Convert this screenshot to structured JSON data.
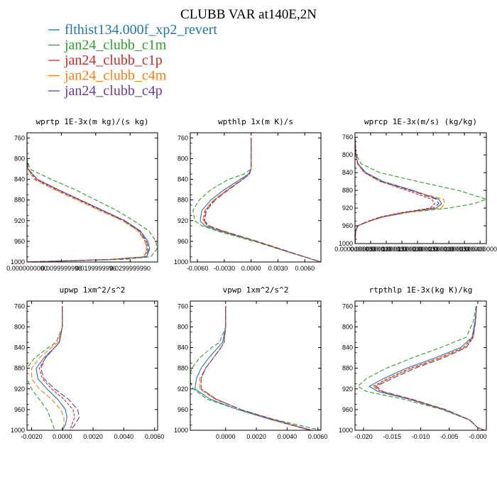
{
  "page": {
    "title": "CLUBB VAR at140E,2N",
    "legend": [
      {
        "label": "flthist134.000f_xp2_revert",
        "color": "#1f77b4",
        "dash": ""
      },
      {
        "label": "jan24_clubb_c1m",
        "color": "#2ca02c",
        "dash": "6,3"
      },
      {
        "label": "jan24_clubb_c1p",
        "color": "#d62728",
        "dash": "4,2"
      },
      {
        "label": "jan24_clubb_c4m",
        "color": "#ff7f0e",
        "dash": "7,3"
      },
      {
        "label": "jan24_clubb_c4p",
        "color": "#6a3d9a",
        "dash": "8,3"
      }
    ]
  },
  "chart_data": [
    {
      "type": "line",
      "title": "wprtp  1E-3x(m kg)/(s kg)",
      "xlim": [
        0.0,
        0.038
      ],
      "ylim": [
        1000,
        750
      ],
      "xticks": [
        0.0,
        0.01,
        0.02,
        0.03
      ],
      "xtick_labels": [
        "0.0000000000",
        "0.0099999998",
        "0.0199999996",
        "0.0299999990"
      ],
      "yticks": [
        760,
        800,
        840,
        880,
        920,
        960,
        1000
      ],
      "ytick_labels": [
        "760",
        "800",
        "840",
        "880",
        "920",
        "960",
        "1000"
      ],
      "y": [
        760,
        800,
        820,
        840,
        860,
        880,
        900,
        920,
        940,
        960,
        975,
        990,
        995,
        1000
      ],
      "series": [
        {
          "values": [
            0,
            0,
            0.0003,
            0.003,
            0.009,
            0.0155,
            0.022,
            0.0285,
            0.033,
            0.0352,
            0.0357,
            0.0348,
            0.025,
            0.0
          ]
        },
        {
          "values": [
            0,
            0,
            0.0008,
            0.007,
            0.014,
            0.02,
            0.026,
            0.031,
            0.0355,
            0.0375,
            0.0378,
            0.036,
            0.028,
            0.0
          ]
        },
        {
          "values": [
            0,
            0,
            0.0002,
            0.0025,
            0.0085,
            0.015,
            0.0215,
            0.028,
            0.0325,
            0.0345,
            0.035,
            0.0342,
            0.024,
            0.0
          ]
        },
        {
          "values": [
            0,
            0,
            0.0002,
            0.002,
            0.008,
            0.0145,
            0.021,
            0.0278,
            0.0323,
            0.0343,
            0.0348,
            0.034,
            0.024,
            0.0
          ]
        },
        {
          "values": [
            0,
            0,
            0.0003,
            0.003,
            0.009,
            0.0155,
            0.022,
            0.0283,
            0.0328,
            0.0348,
            0.0354,
            0.0345,
            0.025,
            0.0
          ]
        }
      ]
    },
    {
      "type": "line",
      "title": "wpthlp  1x(m K)/s",
      "xlim": [
        -0.0068,
        0.0078
      ],
      "ylim": [
        1000,
        750
      ],
      "xticks": [
        -0.006,
        -0.003,
        0.0,
        0.003,
        0.006
      ],
      "xtick_labels": [
        "-0.0060",
        "-0.0030",
        "0.0000",
        "0.0030",
        "0.0060"
      ],
      "yticks": [
        760,
        800,
        840,
        880,
        920,
        960,
        1000
      ],
      "ytick_labels": [
        "760",
        "800",
        "840",
        "880",
        "920",
        "960",
        "1000"
      ],
      "y": [
        760,
        800,
        820,
        830,
        840,
        860,
        880,
        900,
        920,
        930,
        940,
        960,
        980,
        1000
      ],
      "series": [
        {
          "values": [
            0,
            0,
            0,
            -0.0003,
            -0.0012,
            -0.003,
            -0.0045,
            -0.0055,
            -0.0057,
            -0.0052,
            -0.0035,
            0.0005,
            0.004,
            0.0078
          ]
        },
        {
          "values": [
            0,
            0,
            0,
            -0.0008,
            -0.0025,
            -0.0045,
            -0.0058,
            -0.0065,
            -0.0063,
            -0.0055,
            -0.0038,
            0.0003,
            0.004,
            0.0078
          ]
        },
        {
          "values": [
            0,
            0,
            0,
            -0.0002,
            -0.0009,
            -0.0026,
            -0.0041,
            -0.0051,
            -0.0053,
            -0.0048,
            -0.0032,
            0.0006,
            0.0041,
            0.0078
          ]
        },
        {
          "values": [
            0,
            0,
            0,
            -0.0002,
            -0.001,
            -0.0027,
            -0.0042,
            -0.0052,
            -0.0054,
            -0.0049,
            -0.0033,
            0.0006,
            0.0041,
            0.0078
          ]
        },
        {
          "values": [
            0,
            0,
            0,
            -0.0002,
            -0.0009,
            -0.0025,
            -0.004,
            -0.005,
            -0.0052,
            -0.0047,
            -0.0031,
            0.0007,
            0.0042,
            0.0078
          ]
        }
      ]
    },
    {
      "type": "line",
      "title": "wprcp  1E-3x(m/s) (kg/kg)",
      "xlim": [
        0.0,
        0.00042
      ],
      "ylim": [
        1000,
        750
      ],
      "xticks": [
        0.0,
        5e-05,
        0.0001,
        0.00015,
        0.0002,
        0.00025,
        0.0003,
        0.00035,
        0.0004
      ],
      "xtick_labels": [
        "0.0000000000",
        "0.0000500000",
        "0.0001000000",
        "0.0001500000",
        "0.0002000000",
        "0.0002500000",
        "0.0003000000",
        "0.0003500000",
        "0.0004000000"
      ],
      "yticks": [
        760,
        800,
        840,
        880,
        920,
        960,
        1000
      ],
      "ytick_labels": [
        "760",
        "800",
        "840",
        "880",
        "920",
        "960",
        "1000"
      ],
      "y": [
        760,
        800,
        820,
        840,
        860,
        880,
        900,
        910,
        920,
        930,
        940,
        950,
        960,
        970,
        1000
      ],
      "series": [
        {
          "values": [
            0,
            3e-06,
            1e-05,
            3.5e-05,
            9e-05,
            0.000185,
            0.000268,
            0.000277,
            0.00026,
            0.00016,
            9e-05,
            4.5e-05,
            1e-05,
            3e-06,
            0
          ]
        },
        {
          "values": [
            0,
            4e-06,
            2e-05,
            8e-05,
            0.0002,
            0.00033,
            0.00042,
            0.00038,
            0.0003,
            0.00017,
            9e-05,
            4e-05,
            8e-06,
            2e-06,
            0
          ]
        },
        {
          "values": [
            0,
            3e-06,
            8e-06,
            3e-05,
            8e-05,
            0.000165,
            0.000245,
            0.000255,
            0.00024,
            0.00015,
            8e-05,
            4e-05,
            8e-06,
            2e-06,
            0
          ]
        },
        {
          "values": [
            0,
            3e-06,
            9e-06,
            3e-05,
            8e-05,
            0.000175,
            0.000283,
            0.000287,
            0.000275,
            0.00017,
            9e-05,
            4.5e-05,
            1e-05,
            3e-06,
            0
          ]
        },
        {
          "values": [
            0,
            3e-06,
            9e-06,
            3.2e-05,
            8.5e-05,
            0.000178,
            0.00026,
            0.000268,
            0.00025,
            0.000155,
            8.5e-05,
            4.2e-05,
            9e-06,
            2e-06,
            0
          ]
        }
      ]
    },
    {
      "type": "line",
      "title": "upwp  1xm^2/s^2",
      "xlim": [
        -0.0023,
        0.0062
      ],
      "ylim": [
        1000,
        750
      ],
      "xticks": [
        -0.002,
        0.0,
        0.002,
        0.004,
        0.006
      ],
      "xtick_labels": [
        "-0.0020",
        "0.0000",
        "0.0020",
        "0.0040",
        "0.0060"
      ],
      "yticks": [
        760,
        800,
        840,
        880,
        920,
        960,
        1000
      ],
      "ytick_labels": [
        "760",
        "800",
        "840",
        "880",
        "920",
        "960",
        "1000"
      ],
      "y": [
        760,
        800,
        830,
        840,
        860,
        880,
        900,
        920,
        940,
        960,
        975,
        990,
        1000
      ],
      "series": [
        {
          "values": [
            0,
            0,
            -0.0002,
            -0.0005,
            -0.0012,
            -0.0017,
            -0.0016,
            -0.001,
            -0.0003,
            0.0002,
            0.0003,
            0.0002,
            0.0
          ]
        },
        {
          "values": [
            0,
            0,
            -0.0004,
            -0.0009,
            -0.0018,
            -0.0023,
            -0.0023,
            -0.002,
            -0.0015,
            -0.001,
            -0.0008,
            -0.0006,
            -0.0005
          ]
        },
        {
          "values": [
            0,
            0,
            -0.0002,
            -0.0005,
            -0.0011,
            -0.0015,
            -0.0013,
            -0.0007,
            0.0001,
            0.0007,
            0.0008,
            0.0006,
            0.0005
          ]
        },
        {
          "values": [
            0,
            0,
            -0.0003,
            -0.0007,
            -0.0015,
            -0.002,
            -0.002,
            -0.0015,
            -0.0007,
            -0.0001,
            0.0001,
            0.0001,
            0.0
          ]
        },
        {
          "values": [
            0,
            0,
            -0.0002,
            -0.0005,
            -0.0011,
            -0.0014,
            -0.0012,
            -0.0005,
            0.0004,
            0.001,
            0.0011,
            0.0008,
            0.0005
          ]
        }
      ]
    },
    {
      "type": "line",
      "title": "vpwp  1xm^2/s^2",
      "xlim": [
        -0.0023,
        0.0062
      ],
      "ylim": [
        1000,
        750
      ],
      "xticks": [
        0.0,
        0.002,
        0.004,
        0.006
      ],
      "xtick_labels": [
        "0.0000",
        "0.0020",
        "0.0040",
        "0.0060"
      ],
      "yticks": [
        760,
        800,
        840,
        880,
        920,
        960,
        1000
      ],
      "ytick_labels": [
        "760",
        "800",
        "840",
        "880",
        "920",
        "960",
        "1000"
      ],
      "y": [
        760,
        800,
        830,
        840,
        860,
        880,
        900,
        920,
        940,
        960,
        980,
        1000
      ],
      "series": [
        {
          "values": [
            0,
            0,
            -0.0002,
            -0.0005,
            -0.0011,
            -0.0016,
            -0.0019,
            -0.002,
            -0.001,
            0.0008,
            0.003,
            0.0055
          ]
        },
        {
          "values": [
            0,
            0,
            -0.0004,
            -0.0009,
            -0.0017,
            -0.0022,
            -0.0024,
            -0.0021,
            -0.0012,
            0.0008,
            0.0033,
            0.0062
          ]
        },
        {
          "values": [
            0,
            0,
            -0.0001,
            -0.0003,
            -0.0008,
            -0.0013,
            -0.0016,
            -0.0016,
            -0.0006,
            0.001,
            0.0032,
            0.0056
          ]
        },
        {
          "values": [
            0,
            0,
            -0.0001,
            -0.0003,
            -0.0008,
            -0.0013,
            -0.0017,
            -0.0017,
            -0.0007,
            0.001,
            0.0031,
            0.0055
          ]
        },
        {
          "values": [
            0,
            0,
            -0.0001,
            -0.0003,
            -0.0008,
            -0.0013,
            -0.0016,
            -0.0016,
            -0.0006,
            0.001,
            0.0032,
            0.0056
          ]
        }
      ]
    },
    {
      "type": "line",
      "title": "rtpthlp  1E-3x(kg K)/kg",
      "xlim": [
        -0.0215,
        0.0015
      ],
      "ylim": [
        1000,
        750
      ],
      "xticks": [
        -0.02,
        -0.015,
        -0.01,
        -0.005,
        0.0
      ],
      "xtick_labels": [
        "-0.020",
        "-0.015",
        "-0.010",
        "-0.005",
        "-0.000"
      ],
      "yticks": [
        760,
        800,
        840,
        880,
        920,
        960,
        1000
      ],
      "ytick_labels": [
        "760",
        "800",
        "840",
        "880",
        "920",
        "960",
        "1000"
      ],
      "y": [
        760,
        790,
        820,
        840,
        860,
        880,
        900,
        915,
        925,
        940,
        960,
        980,
        995,
        1000
      ],
      "series": [
        {
          "values": [
            -0.0002,
            -0.0005,
            -0.001,
            -0.003,
            -0.0075,
            -0.0125,
            -0.0165,
            -0.019,
            -0.0175,
            -0.012,
            -0.006,
            -0.0015,
            0.0,
            0.0012
          ]
        },
        {
          "values": [
            -0.0003,
            -0.0008,
            -0.002,
            -0.0065,
            -0.0115,
            -0.016,
            -0.0195,
            -0.021,
            -0.0195,
            -0.013,
            -0.0062,
            -0.0015,
            0.0,
            0.0012
          ]
        },
        {
          "values": [
            -0.0002,
            -0.0004,
            -0.0009,
            -0.0025,
            -0.0068,
            -0.0118,
            -0.0158,
            -0.0183,
            -0.017,
            -0.0118,
            -0.0058,
            -0.0014,
            0.0,
            0.0012
          ]
        },
        {
          "values": [
            -0.0002,
            -0.0004,
            -0.0008,
            -0.0022,
            -0.0065,
            -0.0115,
            -0.0155,
            -0.018,
            -0.0168,
            -0.0116,
            -0.0057,
            -0.0014,
            0.0,
            0.0012
          ]
        },
        {
          "values": [
            -0.0002,
            -0.0004,
            -0.0008,
            -0.002,
            -0.006,
            -0.011,
            -0.015,
            -0.0178,
            -0.0166,
            -0.0115,
            -0.0056,
            -0.0014,
            0.0,
            0.0012
          ]
        }
      ]
    }
  ]
}
